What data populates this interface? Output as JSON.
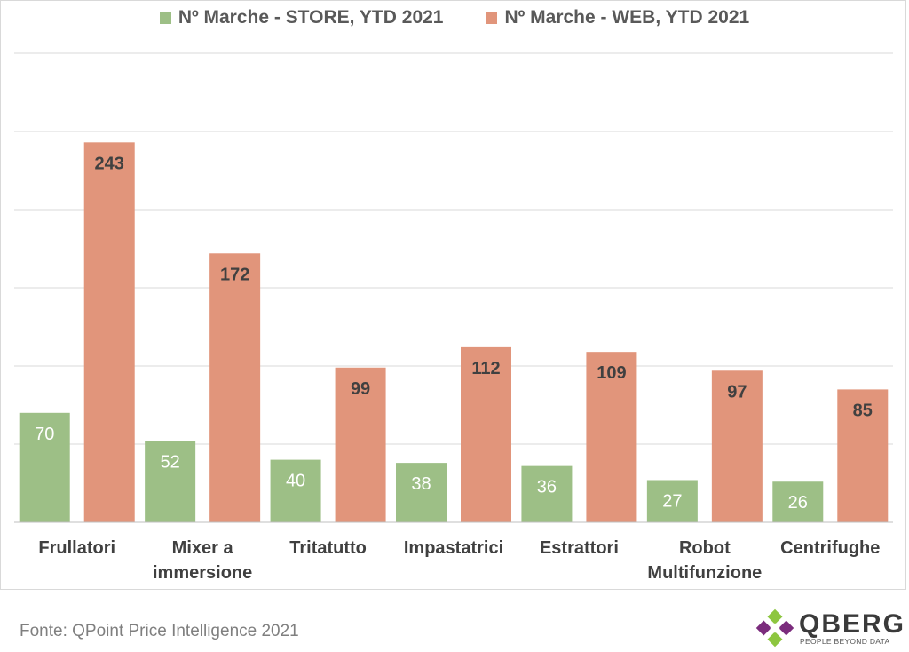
{
  "chart_data": {
    "type": "bar",
    "categories": [
      [
        "Frullatori"
      ],
      [
        "Mixer a",
        "immersione"
      ],
      [
        "Tritatutto"
      ],
      [
        "Impastatrici"
      ],
      [
        "Estrattori"
      ],
      [
        "Robot",
        "Multifunzione"
      ],
      [
        "Centrifughe"
      ]
    ],
    "series": [
      {
        "name": "Nº Marche - STORE, YTD 2021",
        "color": "#9dbf86",
        "values": [
          70,
          52,
          40,
          38,
          36,
          27,
          26
        ]
      },
      {
        "name": "Nº Marche - WEB, YTD 2021",
        "color": "#e1957b",
        "values": [
          243,
          172,
          99,
          112,
          109,
          97,
          85
        ]
      }
    ],
    "ylim": [
      0,
      300
    ],
    "grid": true,
    "legend_position": "top"
  },
  "source": "Fonte: QPoint Price Intelligence 2021",
  "logo": {
    "brand": "QBERG",
    "tagline": "PEOPLE BEYOND DATA"
  }
}
